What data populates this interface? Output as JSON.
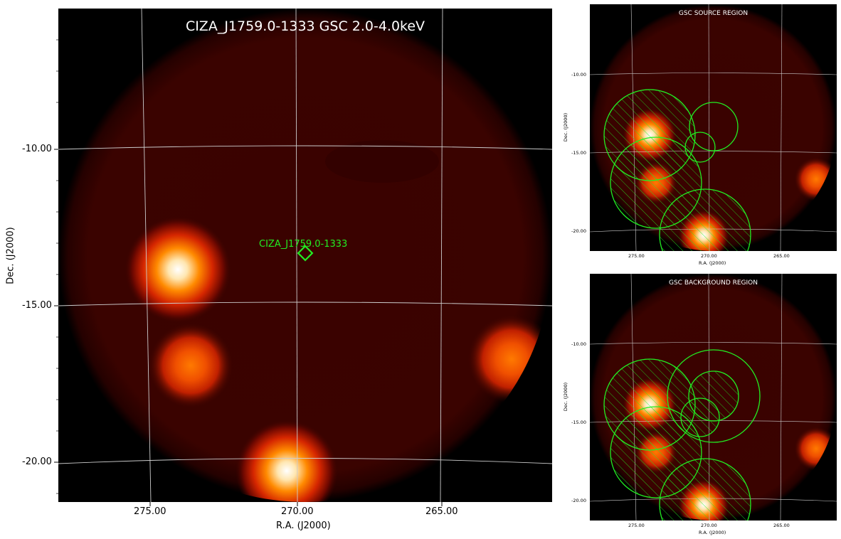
{
  "main": {
    "title": "CIZA_J1759.0-1333 GSC 2.0-4.0keV",
    "marker_label": "CIZA_J1759.0-1333",
    "xlabel": "R.A. (J2000)",
    "ylabel": "Dec. (J2000)",
    "xticks": [
      "275.00",
      "270.00",
      "265.00"
    ],
    "yticks": [
      "-10.00",
      "-15.00",
      "-20.00"
    ]
  },
  "source_panel": {
    "title": "GSC SOURCE REGION",
    "xlabel": "R.A. (J2000)",
    "ylabel": "Dec. (J2000)",
    "xticks": [
      "275.00",
      "270.00",
      "265.00"
    ],
    "yticks": [
      "-10.00",
      "-15.00",
      "-20.00"
    ]
  },
  "background_panel": {
    "title": "GSC BACKGROUND REGION",
    "xlabel": "R.A. (J2000)",
    "ylabel": "Dec. (J2000)",
    "xticks": [
      "275.00",
      "270.00",
      "265.00"
    ],
    "yticks": [
      "-10.00",
      "-15.00",
      "-20.00"
    ]
  },
  "colors": {
    "region": "#22ee22",
    "grid": "#cccccc",
    "title_text": "#ffffff"
  }
}
